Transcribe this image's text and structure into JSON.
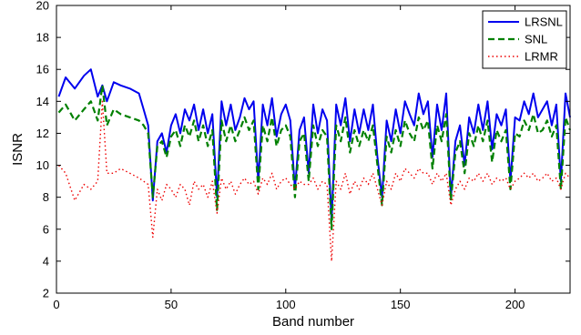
{
  "chart_data": {
    "type": "line",
    "xlabel": "Band number",
    "ylabel": "ISNR",
    "xlim": [
      0,
      224
    ],
    "ylim": [
      2,
      20
    ],
    "x_ticks": [
      0,
      50,
      100,
      150,
      200
    ],
    "y_ticks": [
      2,
      4,
      6,
      8,
      10,
      12,
      14,
      16,
      18,
      20
    ],
    "grid": false,
    "legend_position": "top-right",
    "x": [
      1,
      4,
      8,
      12,
      15,
      18,
      20,
      22,
      25,
      28,
      32,
      36,
      38,
      40,
      42,
      44,
      46,
      48,
      50,
      52,
      54,
      56,
      58,
      60,
      62,
      64,
      66,
      68,
      70,
      72,
      74,
      76,
      78,
      80,
      82,
      84,
      86,
      88,
      90,
      92,
      94,
      96,
      98,
      100,
      102,
      104,
      106,
      108,
      110,
      112,
      114,
      116,
      118,
      120,
      122,
      124,
      126,
      128,
      130,
      132,
      134,
      136,
      138,
      140,
      142,
      144,
      146,
      148,
      150,
      152,
      154,
      156,
      158,
      160,
      162,
      164,
      166,
      168,
      170,
      172,
      174,
      176,
      178,
      180,
      182,
      184,
      186,
      188,
      190,
      192,
      194,
      196,
      198,
      200,
      202,
      204,
      206,
      208,
      210,
      212,
      214,
      216,
      218,
      220,
      222,
      224
    ],
    "series": [
      {
        "name": "LRSNL",
        "color": "#0000ee",
        "style": "solid",
        "values": [
          14.3,
          15.5,
          14.8,
          15.6,
          16.0,
          14.3,
          15.0,
          14.0,
          15.2,
          15.0,
          14.8,
          14.5,
          13.5,
          12.5,
          7.8,
          11.5,
          12.0,
          10.8,
          12.5,
          13.2,
          12.0,
          13.5,
          12.8,
          13.8,
          12.2,
          13.5,
          12.0,
          13.2,
          8.0,
          14.0,
          12.5,
          13.8,
          12.2,
          13.0,
          14.2,
          13.5,
          14.0,
          9.0,
          13.8,
          12.5,
          14.2,
          11.8,
          13.2,
          13.8,
          12.8,
          8.5,
          12.2,
          13.0,
          9.5,
          13.8,
          12.0,
          13.5,
          12.8,
          6.5,
          13.8,
          12.5,
          14.2,
          11.5,
          13.5,
          12.0,
          13.5,
          12.2,
          13.8,
          10.5,
          8.0,
          12.8,
          11.5,
          13.5,
          12.0,
          14.0,
          13.2,
          12.5,
          14.5,
          13.2,
          14.0,
          10.5,
          13.8,
          12.2,
          14.5,
          8.0,
          11.5,
          12.5,
          10.0,
          13.0,
          12.0,
          13.8,
          12.2,
          14.0,
          11.0,
          13.2,
          12.5,
          13.5,
          9.0,
          13.0,
          12.8,
          14.0,
          13.2,
          14.5,
          13.0,
          13.5,
          14.0,
          12.5,
          13.8,
          9.0,
          14.5,
          13.0
        ]
      },
      {
        "name": "SNL",
        "color": "#008000",
        "style": "dashed",
        "values": [
          13.3,
          13.8,
          12.8,
          13.5,
          14.0,
          12.8,
          15.0,
          12.5,
          13.5,
          13.2,
          13.0,
          12.8,
          12.5,
          12.0,
          8.0,
          11.2,
          11.5,
          10.5,
          11.8,
          12.2,
          11.2,
          12.5,
          11.8,
          12.8,
          11.5,
          12.5,
          11.2,
          12.2,
          7.2,
          12.8,
          11.5,
          12.5,
          11.5,
          12.2,
          13.0,
          12.2,
          12.8,
          8.5,
          12.5,
          11.5,
          13.0,
          11.2,
          12.2,
          12.5,
          11.8,
          8.0,
          11.5,
          12.0,
          9.0,
          12.5,
          11.2,
          12.2,
          11.8,
          6.0,
          12.5,
          11.5,
          13.0,
          10.8,
          12.2,
          11.2,
          12.2,
          11.5,
          12.5,
          10.0,
          7.5,
          11.8,
          10.8,
          12.2,
          11.2,
          12.8,
          12.0,
          11.5,
          13.0,
          12.2,
          12.8,
          9.8,
          12.5,
          11.5,
          13.2,
          7.8,
          10.8,
          11.5,
          9.5,
          12.0,
          11.2,
          12.5,
          11.5,
          12.8,
          10.2,
          12.2,
          11.5,
          12.2,
          8.5,
          12.0,
          11.8,
          12.8,
          12.2,
          13.2,
          12.0,
          12.2,
          12.8,
          11.8,
          12.5,
          8.5,
          13.0,
          12.2
        ]
      },
      {
        "name": "LRMR",
        "color": "#ee0000",
        "style": "dotted",
        "values": [
          10.0,
          9.5,
          7.8,
          8.8,
          8.5,
          9.0,
          14.0,
          9.5,
          9.5,
          9.8,
          9.5,
          9.2,
          9.0,
          8.8,
          5.5,
          8.5,
          7.8,
          8.8,
          8.5,
          8.0,
          8.8,
          8.5,
          7.5,
          9.0,
          8.5,
          8.8,
          8.0,
          9.0,
          7.0,
          9.2,
          8.5,
          9.0,
          8.2,
          8.8,
          9.2,
          8.8,
          9.0,
          8.2,
          9.2,
          8.8,
          9.5,
          8.5,
          9.0,
          9.2,
          8.8,
          8.5,
          9.0,
          8.8,
          8.8,
          9.2,
          8.5,
          9.0,
          8.8,
          4.0,
          9.0,
          8.5,
          9.5,
          8.2,
          9.0,
          8.5,
          9.2,
          8.8,
          9.5,
          8.5,
          7.5,
          9.0,
          8.5,
          9.5,
          9.0,
          9.8,
          9.5,
          9.2,
          9.8,
          9.5,
          9.5,
          8.8,
          9.5,
          9.0,
          9.5,
          7.5,
          8.5,
          9.0,
          8.5,
          9.2,
          9.0,
          9.5,
          9.0,
          9.5,
          8.8,
          9.2,
          9.0,
          9.2,
          8.5,
          9.0,
          9.2,
          9.5,
          9.2,
          9.5,
          9.0,
          9.2,
          9.5,
          9.0,
          9.2,
          8.5,
          9.5,
          9.2
        ]
      }
    ]
  }
}
